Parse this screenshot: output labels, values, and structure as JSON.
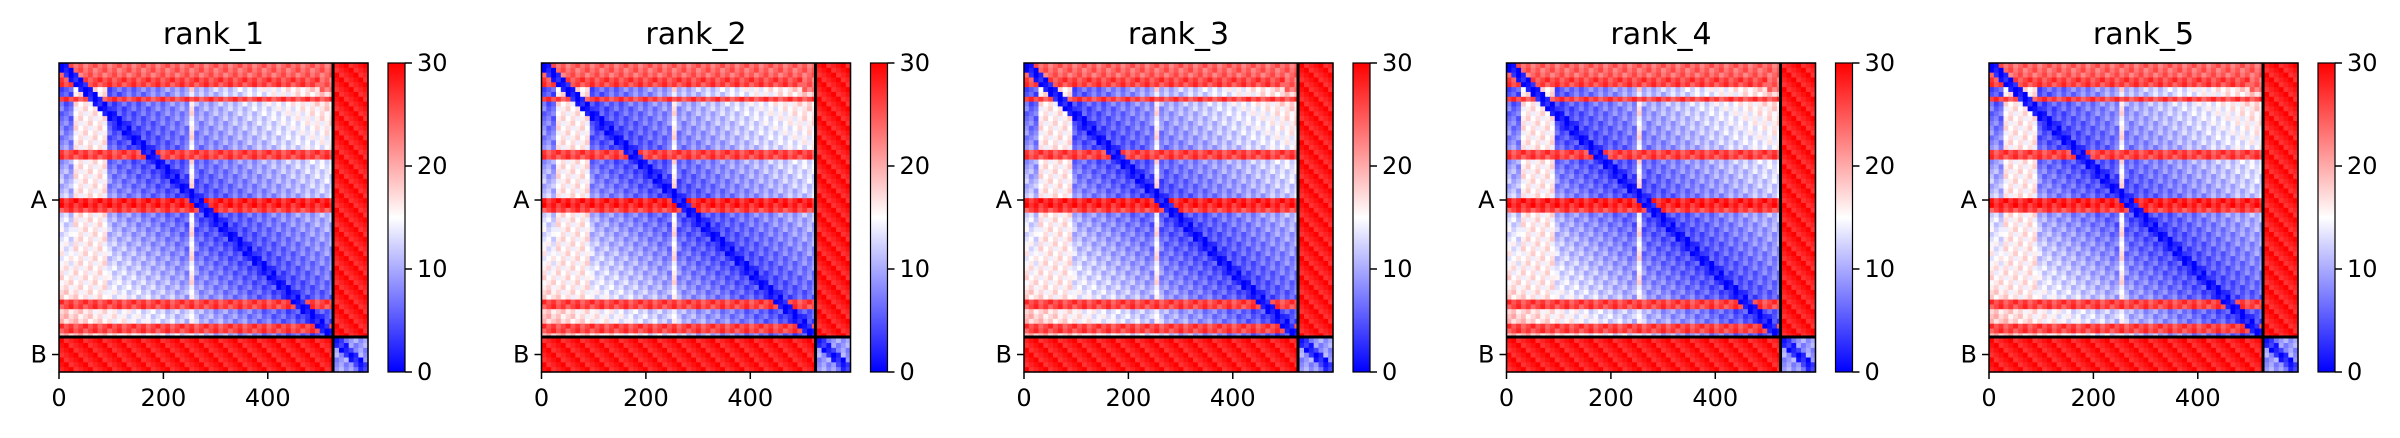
{
  "chart_data": {
    "type": "heatmap",
    "colormap": [
      "#0000ff",
      "#ffffff",
      "#ff0000"
    ],
    "x_ticks": [
      0,
      200,
      400
    ],
    "x_tick_labels": [
      "0",
      "200",
      "400"
    ],
    "xlim": [
      0,
      592
    ],
    "chain_boundary": 525,
    "y_tick_labels": [
      "A",
      "B"
    ],
    "colorbar_range": [
      0,
      30
    ],
    "colorbar_ticks": [
      0,
      10,
      20,
      30
    ],
    "colorbar_tick_labels": [
      "0",
      "10",
      "20",
      "30"
    ],
    "panels": [
      {
        "title": "rank_1"
      },
      {
        "title": "rank_2"
      },
      {
        "title": "rank_3"
      },
      {
        "title": "rank_4"
      },
      {
        "title": "rank_5"
      }
    ]
  }
}
